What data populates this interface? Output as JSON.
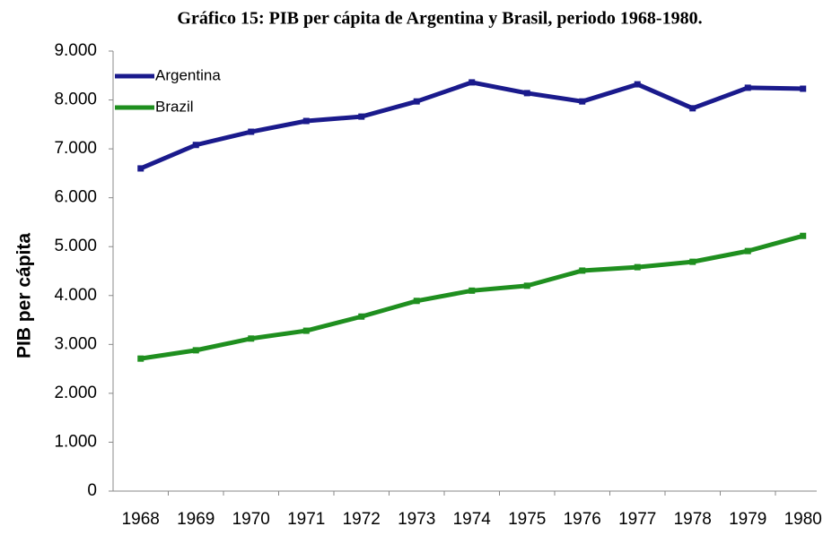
{
  "chart_data": {
    "type": "line",
    "title": "Gráfico 15: PIB per cápita de Argentina y Brasil, periodo 1968-1980.",
    "y_label": "PIB per cápita",
    "categories": [
      "1968",
      "1969",
      "1970",
      "1971",
      "1972",
      "1973",
      "1974",
      "1975",
      "1976",
      "1977",
      "1978",
      "1979",
      "1980"
    ],
    "series": [
      {
        "name": "Argentina",
        "color": "#1a1a8c",
        "values": [
          6600,
          7080,
          7350,
          7570,
          7660,
          7970,
          8360,
          8140,
          7970,
          8320,
          7830,
          8250,
          8230
        ]
      },
      {
        "name": "Brazil",
        "color": "#1f8f1f",
        "values": [
          2710,
          2880,
          3120,
          3280,
          3570,
          3890,
          4100,
          4200,
          4510,
          4580,
          4690,
          4910,
          5220
        ]
      }
    ],
    "ylim": [
      0,
      9000
    ],
    "yticks": [
      0,
      {
        "value": 1000,
        "label": "1.000"
      },
      {
        "value": 2000,
        "label": "2.000"
      },
      {
        "value": 3000,
        "label": "3.000"
      },
      {
        "value": 4000,
        "label": "4.000"
      },
      {
        "value": 5000,
        "label": "5.000"
      },
      {
        "value": 6000,
        "label": "6.000"
      },
      {
        "value": 7000,
        "label": "7.000"
      },
      {
        "value": 8000,
        "label": "8.000"
      },
      {
        "value": 9000,
        "label": "9.000"
      }
    ],
    "grid": false,
    "legend": "top-left"
  }
}
